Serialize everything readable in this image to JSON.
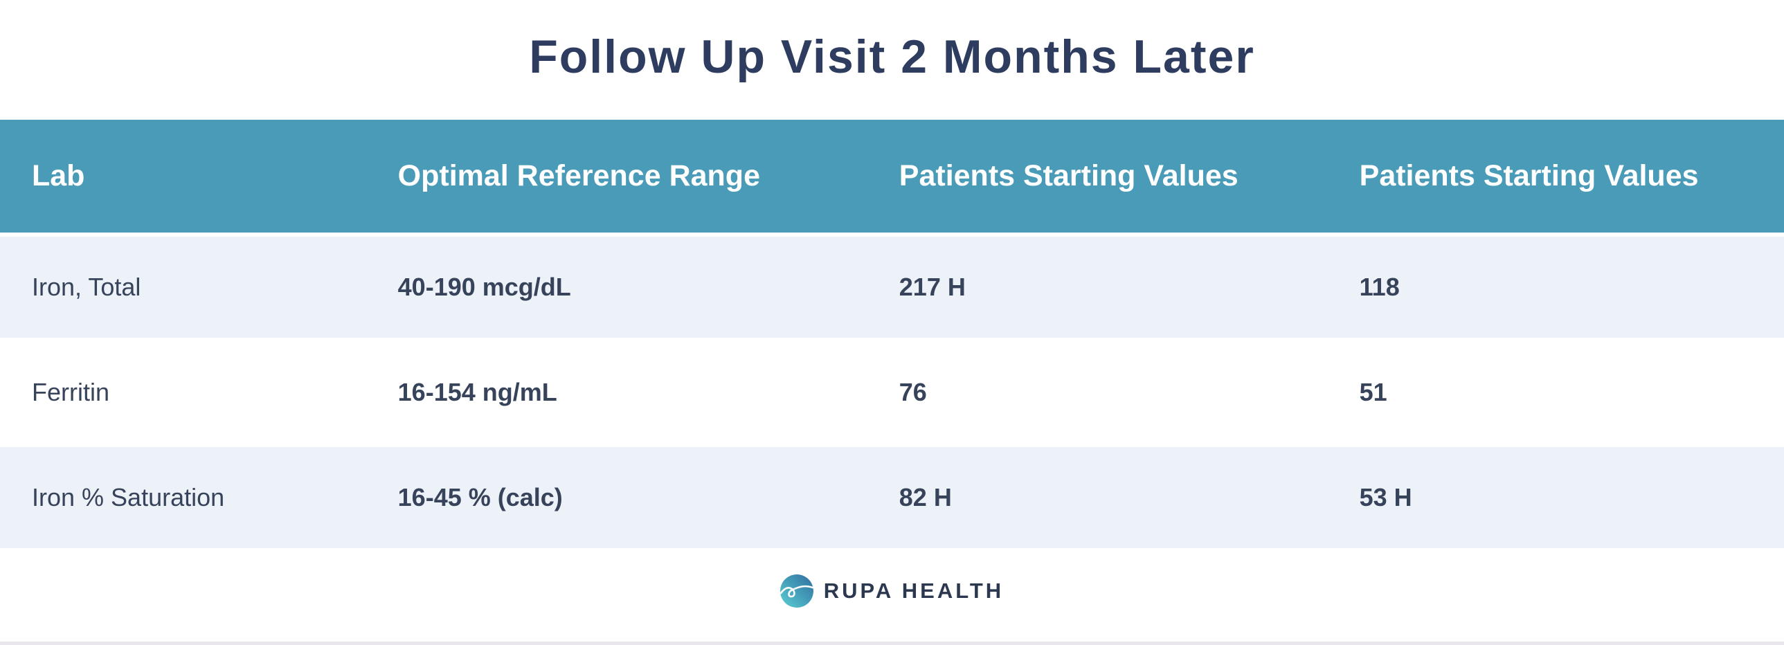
{
  "title": "Follow Up Visit 2 Months Later",
  "chart_data": {
    "type": "table",
    "title": "Follow Up Visit 2 Months Later",
    "columns": [
      "Lab",
      "Optimal Reference Range",
      "Patients Starting Values",
      "Patients Starting Values"
    ],
    "rows": [
      [
        "Iron, Total",
        "40-190 mcg/dL",
        "217 H",
        "118"
      ],
      [
        "Ferritin",
        "16-154 ng/mL",
        "76",
        "51"
      ],
      [
        "Iron % Saturation",
        "16-45 % (calc)",
        "82 H",
        "53 H"
      ]
    ],
    "high_flag": "H",
    "layout_hints": {
      "zebra_striping": true,
      "header_position": "top",
      "alignment": "left"
    }
  },
  "footer": {
    "brand": "RUPA HEALTH",
    "logo_icon": "rupa-wave-circle-icon"
  },
  "colors": {
    "header_bg": "#499bb7",
    "header_text": "#ffffff",
    "row_alt_bg": "#edf1f8",
    "row_bg": "#ffffff",
    "body_text": "#37435a",
    "title_text": "#2e3d5f",
    "brand_text": "#2c3850",
    "bottom_strip": "#e9e7ed",
    "logo_gradient_start": "#5bd0d4",
    "logo_gradient_end": "#2f6d9e"
  }
}
